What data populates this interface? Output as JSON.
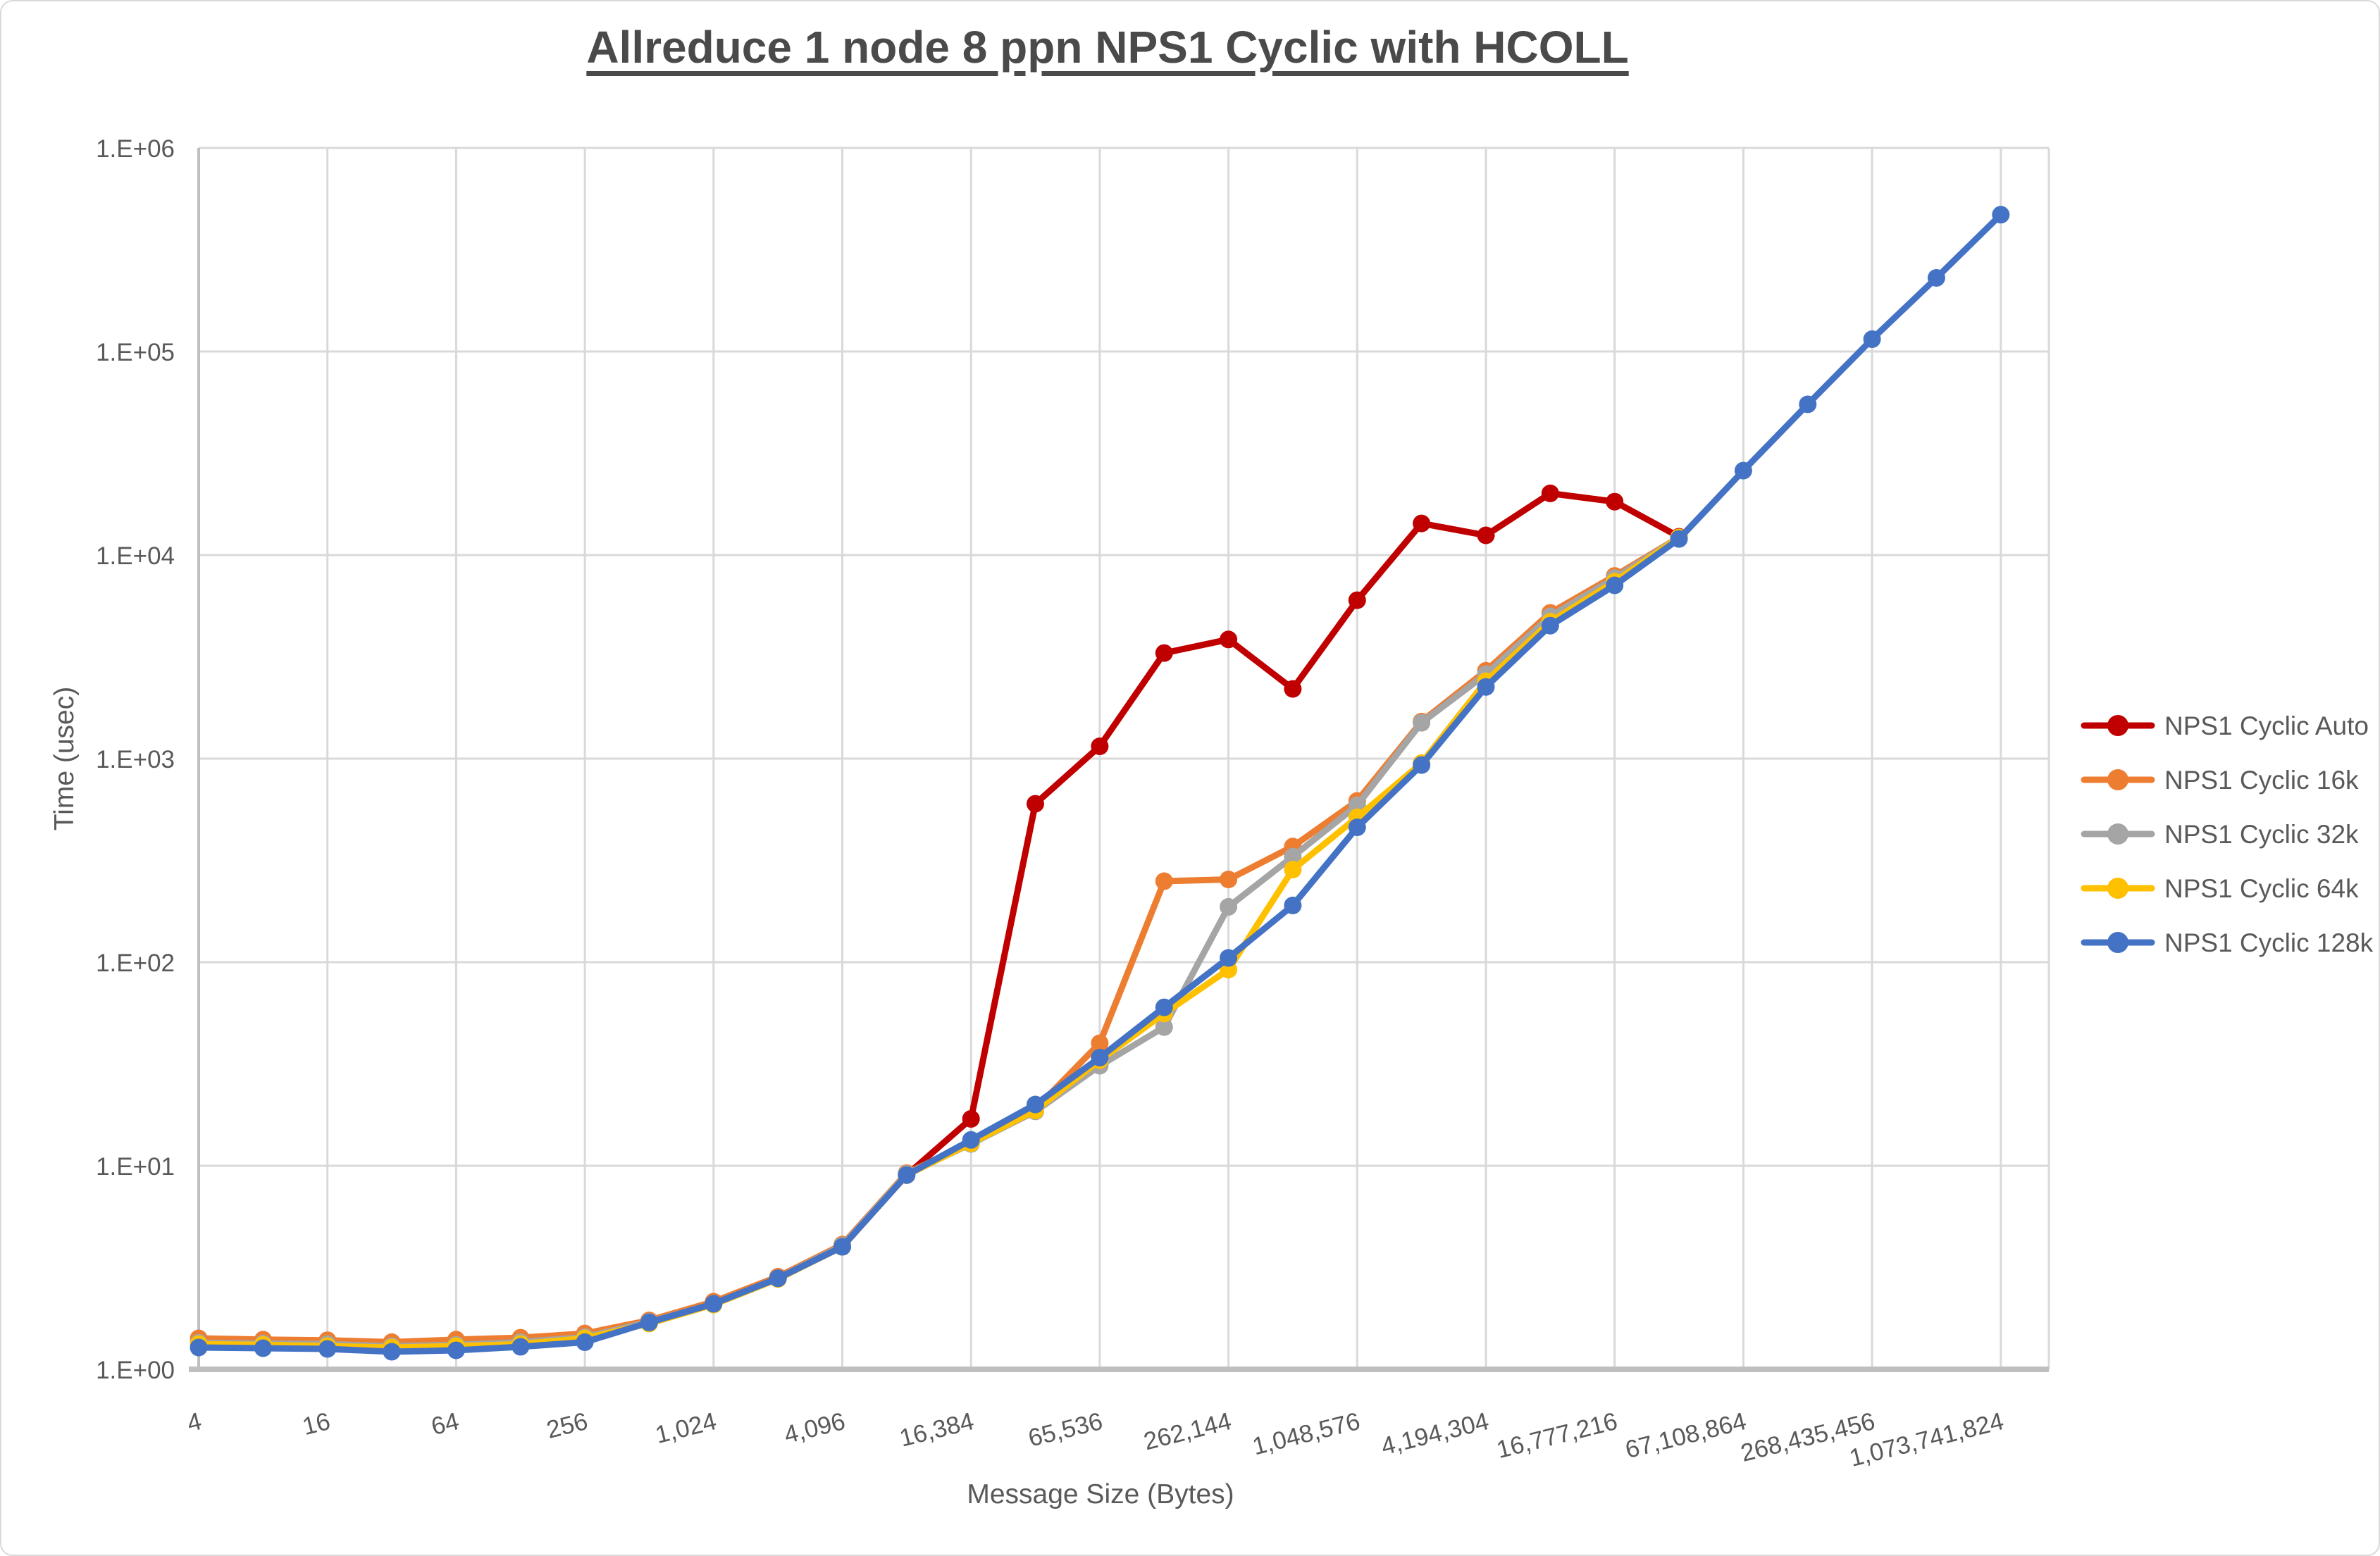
{
  "title": "Allreduce 1 node 8 ppn NPS1 Cyclic with HCOLL",
  "axes": {
    "x_title": "Message Size (Bytes)",
    "y_title": "Time (usec)",
    "x_tick_labels": [
      "4",
      "16",
      "64",
      "256",
      "1,024",
      "4,096",
      "16,384",
      "65,536",
      "262,144",
      "1,048,576",
      "4,194,304",
      "16,777,216",
      "67,108,864",
      "268,435,456",
      "1,073,741,824"
    ],
    "y_tick_labels": [
      "1.E+00",
      "1.E+01",
      "1.E+02",
      "1.E+03",
      "1.E+04",
      "1.E+05",
      "1.E+06"
    ]
  },
  "colors": {
    "auto": "#C00000",
    "k16": "#ED7D31",
    "k32": "#A5A5A5",
    "k64": "#FFC000",
    "k128": "#4472C4",
    "text": "#595959",
    "title_text": "#4a4a4a",
    "gridline": "#D9D9D9",
    "axis_line": "#BFBFBF"
  },
  "chart_data": {
    "type": "line",
    "title": "Allreduce 1 node 8 ppn NPS1 Cyclic with HCOLL",
    "xlabel": "Message Size (Bytes)",
    "ylabel": "Time (usec)",
    "x_scale": "log2",
    "y_scale": "log10",
    "ylim": [
      1,
      1000000
    ],
    "xlim": [
      4,
      1073741824
    ],
    "grid": true,
    "legend_position": "right",
    "x": [
      4,
      8,
      16,
      32,
      64,
      128,
      256,
      512,
      1024,
      2048,
      4096,
      8192,
      16384,
      32768,
      65536,
      131072,
      262144,
      524288,
      1048576,
      2097152,
      4194304,
      8388608,
      16777216,
      33554432,
      67108864,
      134217728,
      268435456,
      536870912,
      1073741824
    ],
    "series": [
      {
        "name": "NPS1 Cyclic Auto",
        "color": "#C00000",
        "values": [
          1.35,
          1.33,
          1.31,
          1.28,
          1.29,
          1.34,
          1.4,
          1.7,
          2.1,
          2.8,
          4.0,
          9.0,
          17,
          600,
          1150,
          3300,
          3850,
          2200,
          6000,
          14300,
          12500,
          20100,
          18300,
          12300
        ]
      },
      {
        "name": "NPS1 Cyclic 16k",
        "color": "#ED7D31",
        "values": [
          1.42,
          1.4,
          1.39,
          1.36,
          1.4,
          1.43,
          1.5,
          1.74,
          2.15,
          2.85,
          4.1,
          9.2,
          13.0,
          19.0,
          40,
          250,
          255,
          370,
          620,
          1520,
          2700,
          5200,
          7900,
          12200
        ]
      },
      {
        "name": "NPS1 Cyclic 32k",
        "color": "#A5A5A5",
        "values": [
          1.35,
          1.34,
          1.33,
          1.3,
          1.32,
          1.36,
          1.44,
          1.71,
          2.1,
          2.8,
          4.05,
          9.1,
          12.8,
          18.5,
          31,
          48,
          187,
          330,
          590,
          1500,
          2600,
          5000,
          7700,
          12200
        ]
      },
      {
        "name": "NPS1 Cyclic 64k",
        "color": "#FFC000",
        "values": [
          1.33,
          1.32,
          1.3,
          1.28,
          1.3,
          1.33,
          1.42,
          1.68,
          2.08,
          2.78,
          4.0,
          9.0,
          12.9,
          18.7,
          33,
          56,
          92,
          285,
          515,
          950,
          2400,
          4700,
          7400,
          12200
        ]
      },
      {
        "name": "NPS1 Cyclic 128k",
        "color": "#4472C4",
        "values": [
          1.28,
          1.27,
          1.26,
          1.22,
          1.24,
          1.29,
          1.36,
          1.7,
          2.1,
          2.8,
          4.0,
          9.0,
          13.4,
          20.0,
          34,
          60,
          105,
          190,
          460,
          930,
          2250,
          4500,
          7100,
          12000,
          26000,
          55000,
          115000,
          230000,
          470000
        ]
      }
    ]
  }
}
